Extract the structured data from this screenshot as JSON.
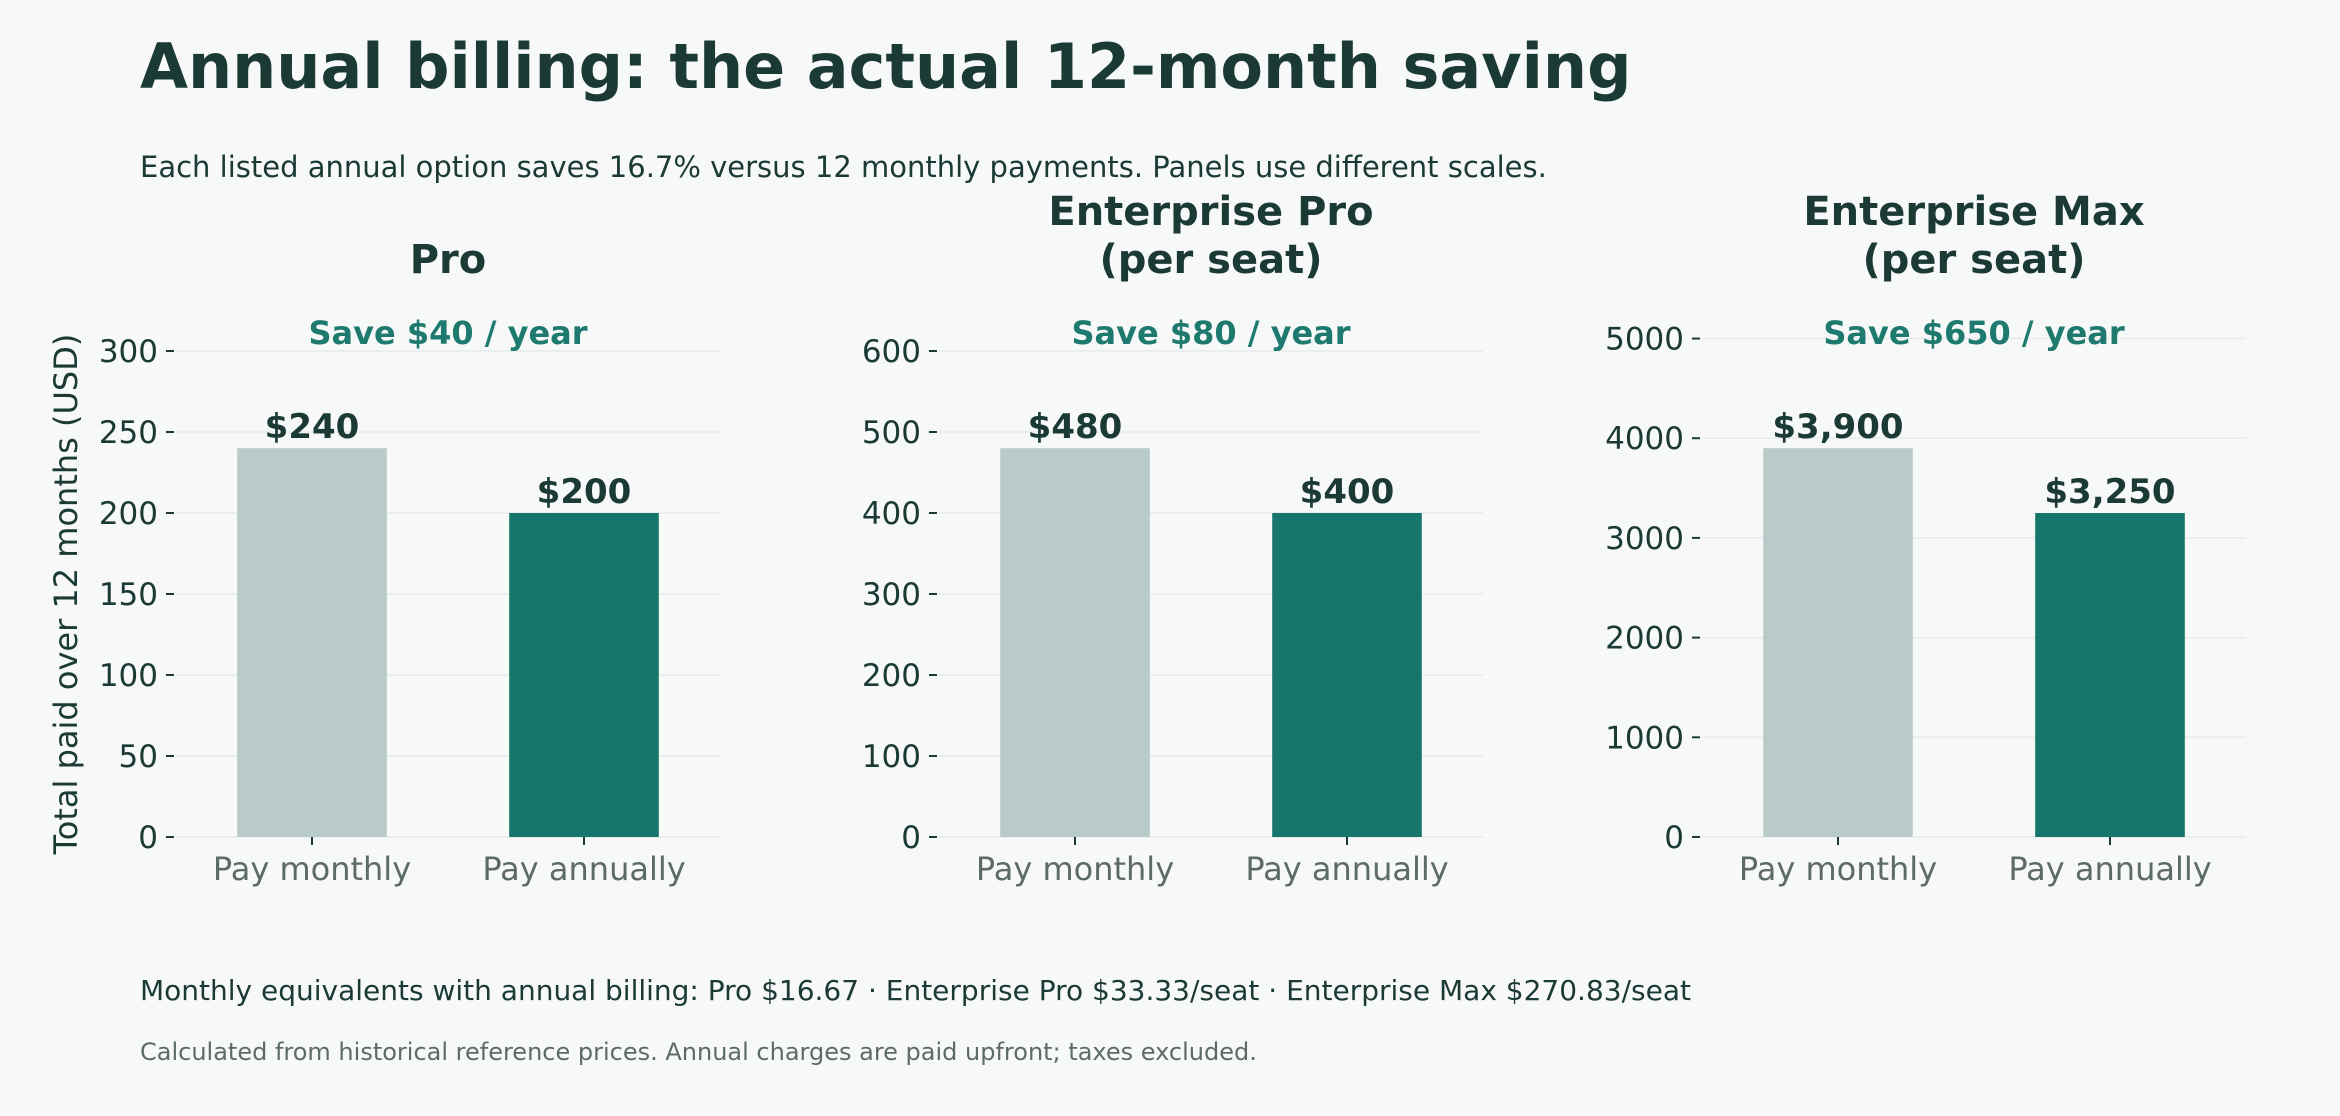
{
  "title": "Annual billing: the actual 12-month saving",
  "subtitle": "Each listed annual option saves 16.7% versus 12 monthly payments. Panels use different scales.",
  "footnote": "Monthly equivalents with annual billing: Pro $16.67 · Enterprise Pro $33.33/seat · Enterprise Max $270.83/seat",
  "source_note": "Calculated from historical reference prices. Annual charges are paid upfront; taxes excluded.",
  "colors": {
    "monthly": "#b8cbc8",
    "annual": "#17766b",
    "text": "#1b3a36",
    "save": "#1e7a6e",
    "muted": "#5c6b69",
    "grid": "#e7ebea"
  },
  "chart_data": [
    {
      "type": "bar",
      "title": [
        "Pro"
      ],
      "annotation": "Save $40 / year",
      "ylabel": "Total paid over 12 months (USD)",
      "categories": [
        "Pay monthly",
        "Pay annually"
      ],
      "values": [
        240,
        200
      ],
      "value_labels": [
        "$240",
        "$200"
      ],
      "ylim": [
        0,
        300
      ],
      "yticks": [
        0,
        50,
        100,
        150,
        200,
        250,
        300
      ],
      "ytick_labels": [
        "0",
        "50",
        "100",
        "150",
        "200",
        "250",
        "300"
      ]
    },
    {
      "type": "bar",
      "title": [
        "Enterprise Pro",
        "(per seat)"
      ],
      "annotation": "Save $80 / year",
      "ylabel": "",
      "categories": [
        "Pay monthly",
        "Pay annually"
      ],
      "values": [
        480,
        400
      ],
      "value_labels": [
        "$480",
        "$400"
      ],
      "ylim": [
        0,
        600
      ],
      "yticks": [
        0,
        100,
        200,
        300,
        400,
        500,
        600
      ],
      "ytick_labels": [
        "0",
        "100",
        "200",
        "300",
        "400",
        "500",
        "600"
      ]
    },
    {
      "type": "bar",
      "title": [
        "Enterprise Max",
        "(per seat)"
      ],
      "annotation": "Save $650 / year",
      "ylabel": "",
      "categories": [
        "Pay monthly",
        "Pay annually"
      ],
      "values": [
        3900,
        3250
      ],
      "value_labels": [
        "$3,900",
        "$3,250"
      ],
      "ylim": [
        0,
        4875
      ],
      "yticks": [
        0,
        1000,
        2000,
        3000,
        4000,
        5000
      ],
      "ytick_labels": [
        "0",
        "1000",
        "2000",
        "3000",
        "4000",
        "5000"
      ]
    }
  ]
}
